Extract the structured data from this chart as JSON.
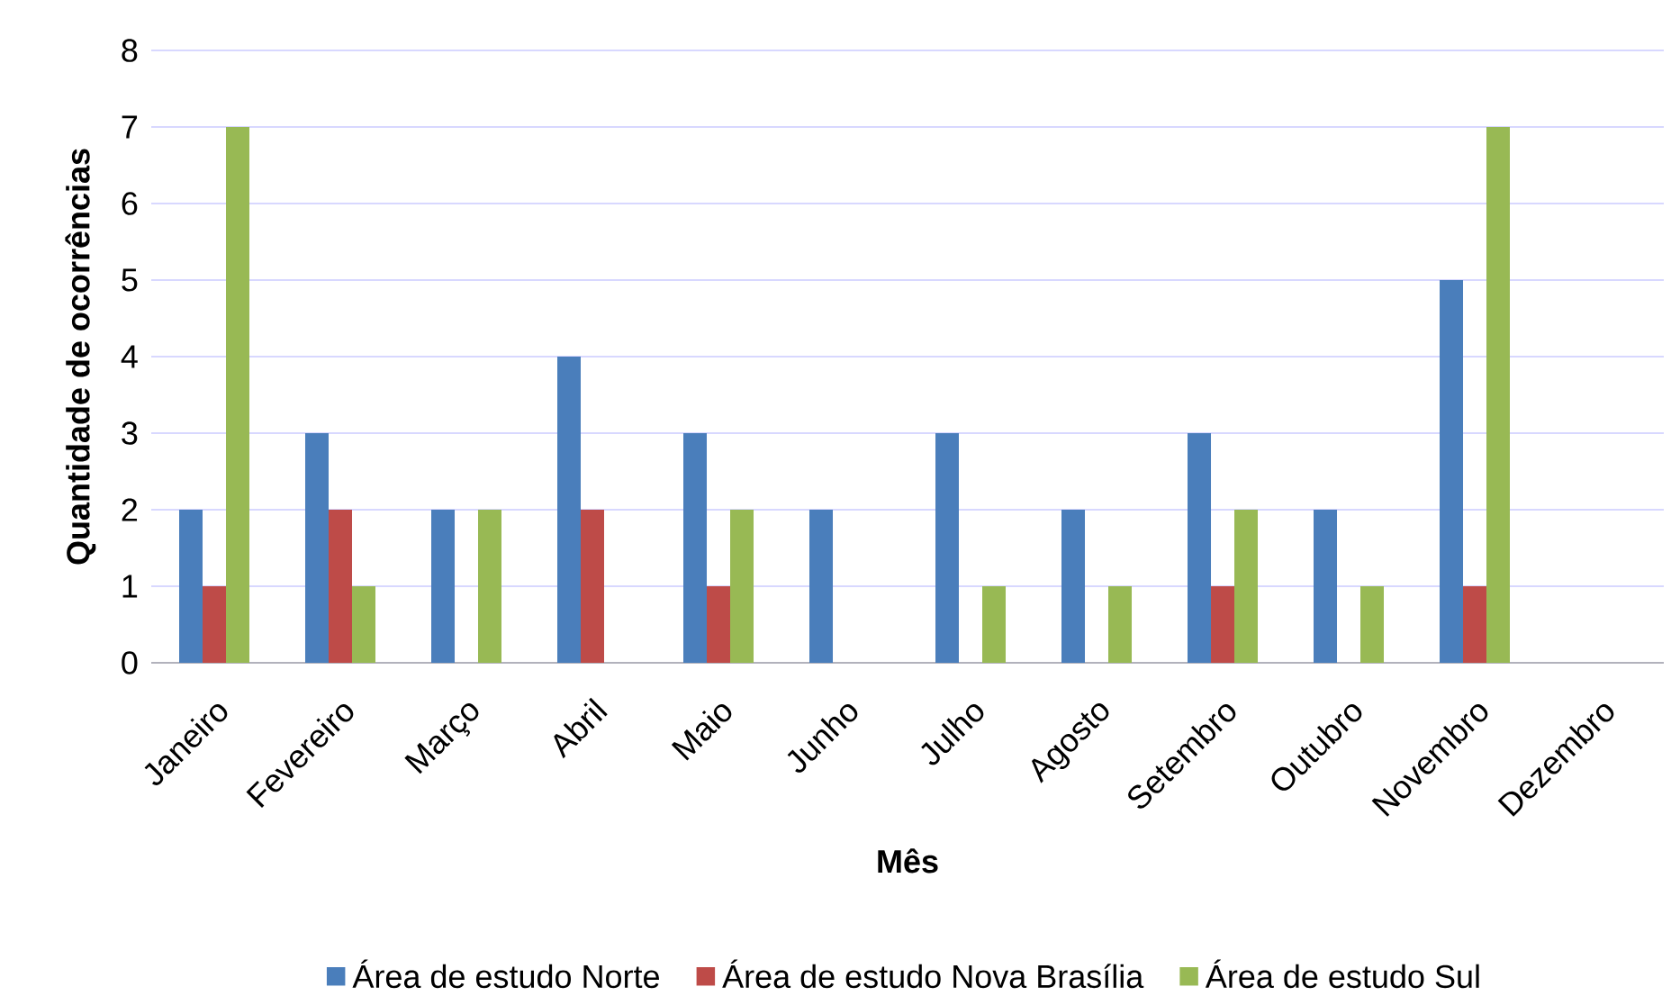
{
  "chart_data": {
    "type": "bar",
    "xlabel": "Mês",
    "ylabel": "Quantidade de ocorrências",
    "categories": [
      "Janeiro",
      "Fevereiro",
      "Março",
      "Abril",
      "Maio",
      "Junho",
      "Julho",
      "Agosto",
      "Setembro",
      "Outubro",
      "Novembro",
      "Dezembro"
    ],
    "series": [
      {
        "name": "Área de estudo Norte",
        "color": "#4a7ebb",
        "values": [
          2,
          3,
          2,
          4,
          3,
          2,
          3,
          2,
          3,
          2,
          5,
          0
        ]
      },
      {
        "name": "Área de estudo Nova Brasília",
        "color": "#be4b48",
        "values": [
          1,
          2,
          0,
          2,
          1,
          0,
          0,
          0,
          1,
          0,
          1,
          0
        ]
      },
      {
        "name": "Área de estudo Sul",
        "color": "#98b954",
        "values": [
          7,
          1,
          2,
          0,
          2,
          0,
          1,
          1,
          2,
          1,
          7,
          0
        ]
      }
    ],
    "ylim": [
      0,
      8
    ],
    "yticks": [
      0,
      1,
      2,
      3,
      4,
      5,
      6,
      7,
      8
    ],
    "grid": "y",
    "legend": "bottom"
  }
}
